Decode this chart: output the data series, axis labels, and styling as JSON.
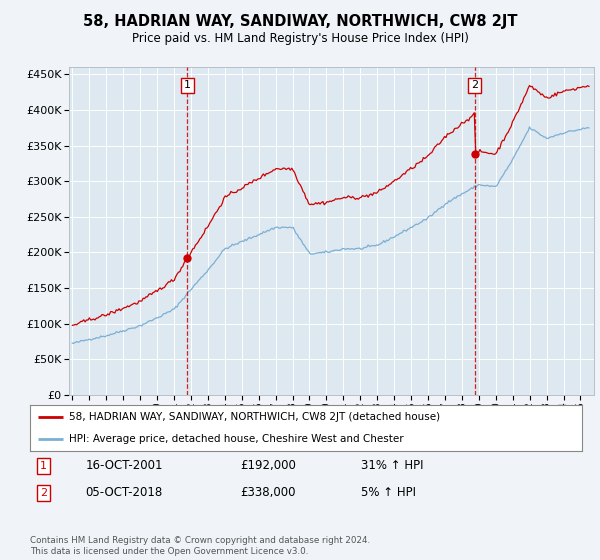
{
  "title": "58, HADRIAN WAY, SANDIWAY, NORTHWICH, CW8 2JT",
  "subtitle": "Price paid vs. HM Land Registry's House Price Index (HPI)",
  "sale1_date_x": 2001.79,
  "sale1_price": 192000,
  "sale1_label": "1",
  "sale1_hpi_pct": "31% ↑ HPI",
  "sale1_date_str": "16-OCT-2001",
  "sale2_date_x": 2018.76,
  "sale2_price": 338000,
  "sale2_label": "2",
  "sale2_hpi_pct": "5% ↑ HPI",
  "sale2_date_str": "05-OCT-2018",
  "legend_line1": "58, HADRIAN WAY, SANDIWAY, NORTHWICH, CW8 2JT (detached house)",
  "legend_line2": "HPI: Average price, detached house, Cheshire West and Chester",
  "footer": "Contains HM Land Registry data © Crown copyright and database right 2024.\nThis data is licensed under the Open Government Licence v3.0.",
  "red_color": "#cc0000",
  "blue_color": "#7bafd4",
  "dashed_color": "#cc0000",
  "background_color": "#f0f4f8",
  "plot_bg": "#dde8f0",
  "ymin": 0,
  "ymax": 460000,
  "xmin": 1994.8,
  "xmax": 2025.8
}
